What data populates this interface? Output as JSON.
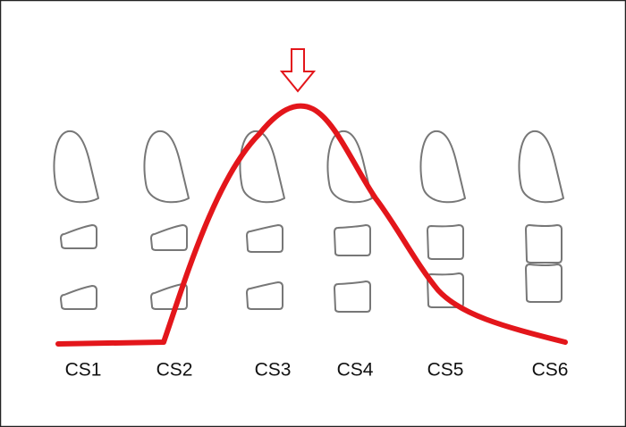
{
  "stages": [
    {
      "label": "CS1"
    },
    {
      "label": "CS2"
    },
    {
      "label": "CS3"
    },
    {
      "label": "CS4"
    },
    {
      "label": "CS5"
    },
    {
      "label": "CS6"
    }
  ]
}
